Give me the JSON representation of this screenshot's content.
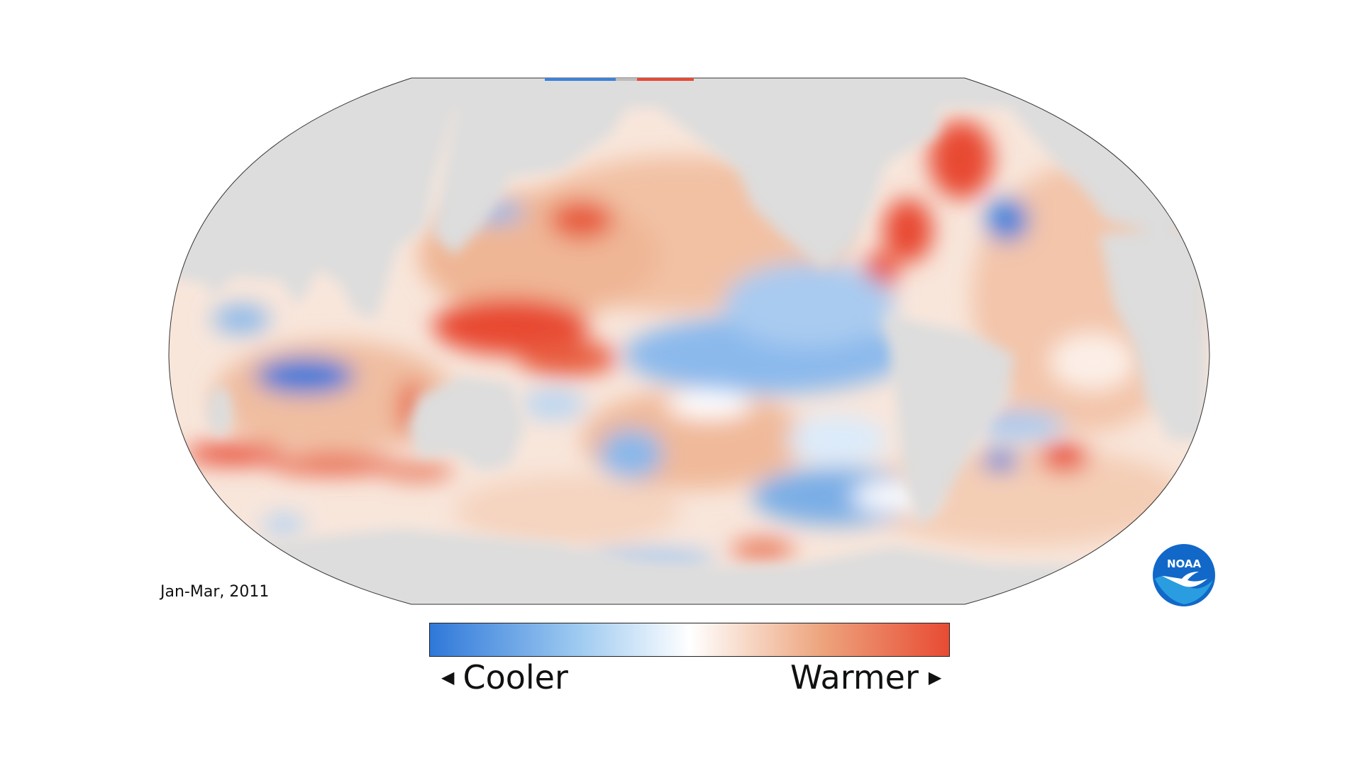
{
  "period_label": "Jan-Mar, 2011",
  "legend": {
    "cool_label": "Cooler",
    "warm_label": "Warmer",
    "colors": [
      "#2f78d9",
      "#6aa8e8",
      "#bcd9f4",
      "#ffffff",
      "#f5d2bc",
      "#eca07a",
      "#e84a33"
    ]
  },
  "map": {
    "land_color": "#dddddd",
    "cool_color": "#2f78d9",
    "warm_color": "#e84a33"
  },
  "logo": {
    "text": "NOAA",
    "blue": "#1168c8",
    "light_blue": "#2a9de0"
  }
}
